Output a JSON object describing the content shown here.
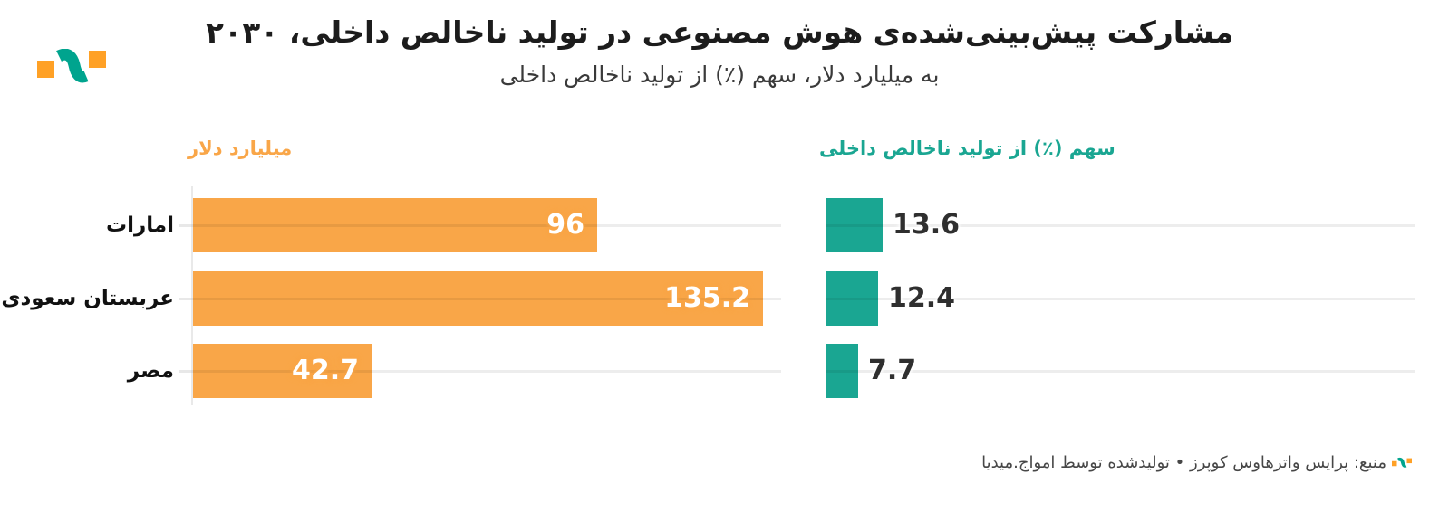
{
  "header": {
    "title": "مشارکت پیش‌بینی‌شده‌ی هوش مصنوعی در تولید ناخالص داخلی، ۲۰۳۰",
    "subtitle": "به میلیارد دلار، سهم (٪) از تولید ناخالص داخلی"
  },
  "brand": {
    "logo_orange": "#FFA126",
    "logo_teal": "#00A48E"
  },
  "chart_data": {
    "type": "bar",
    "orientation": "horizontal",
    "title": "مشارکت پیش‌بینی‌شده‌ی هوش مصنوعی در تولید ناخالص داخلی، ۲۰۳۰",
    "subtitle": "به میلیارد دلار، سهم (٪) از تولید ناخالص داخلی",
    "categories": [
      "امارات",
      "عربستان سعودی",
      "مصر"
    ],
    "series": [
      {
        "name": "میلیارد دلار",
        "color": "#F9A648",
        "values": [
          96,
          135.2,
          42.7
        ],
        "value_labels": [
          "96",
          "135.2",
          "42.7"
        ],
        "value_label_position": "inside-end",
        "axis_max": 139.6
      },
      {
        "name": "سهم (٪) از تولید ناخالص داخلی",
        "color": "#1AA692",
        "values": [
          13.6,
          12.4,
          7.7
        ],
        "value_labels": [
          "13.6",
          "12.4",
          "7.7"
        ],
        "value_label_position": "outside-end",
        "axis_max": 139.6
      }
    ],
    "grid": true,
    "gridline_color": "#ececec",
    "category_label_color": "#111111",
    "value_label_color_dark": "#2f2f2f",
    "legend_position": "column-headers-above-chart"
  },
  "footer": {
    "text": "منبع: پرایس واترهاوس کوپرز • تولیدشده توسط امواج.میدیا"
  }
}
